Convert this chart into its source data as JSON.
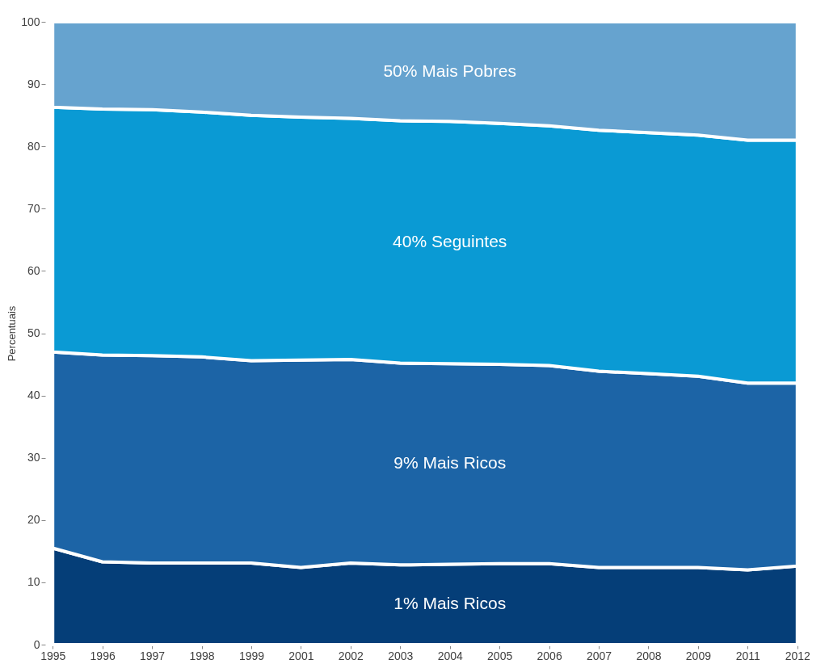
{
  "chart_data": {
    "type": "area",
    "stacked": true,
    "ylabel": "Percentuais",
    "ylim": [
      0,
      100
    ],
    "yticks": [
      0,
      10,
      20,
      30,
      40,
      50,
      60,
      70,
      80,
      90,
      100
    ],
    "grid": false,
    "legend": false,
    "categories": [
      "1995",
      "1996",
      "1997",
      "1998",
      "1999",
      "2001",
      "2002",
      "2003",
      "2004",
      "2005",
      "2006",
      "2007",
      "2008",
      "2009",
      "2011",
      "2012"
    ],
    "series": [
      {
        "name": "1% Mais Ricos",
        "color": "#053e78",
        "values": [
          15.5,
          13.3,
          13.1,
          13.1,
          13.1,
          12.4,
          13.1,
          12.8,
          12.9,
          13.0,
          13.0,
          12.4,
          12.4,
          12.4,
          12.0,
          12.6
        ]
      },
      {
        "name": "9% Mais Ricos",
        "color": "#1c64a6",
        "values": [
          31.5,
          33.2,
          33.3,
          33.1,
          32.5,
          33.3,
          32.7,
          32.4,
          32.2,
          32.0,
          31.8,
          31.5,
          31.1,
          30.7,
          30.0,
          29.4
        ]
      },
      {
        "name": "40% Seguintes",
        "color": "#0a9ad4",
        "values": [
          39.3,
          39.5,
          39.5,
          39.3,
          39.4,
          39.0,
          38.7,
          38.9,
          38.9,
          38.7,
          38.5,
          38.7,
          38.7,
          38.7,
          39.0,
          39.0
        ]
      },
      {
        "name": "50% Mais Pobres",
        "color": "#66a3cf",
        "values": [
          13.7,
          14.0,
          14.1,
          14.5,
          15.0,
          15.3,
          15.5,
          15.9,
          16.0,
          16.3,
          16.7,
          17.4,
          17.8,
          18.2,
          19.0,
          19.0
        ]
      }
    ]
  }
}
